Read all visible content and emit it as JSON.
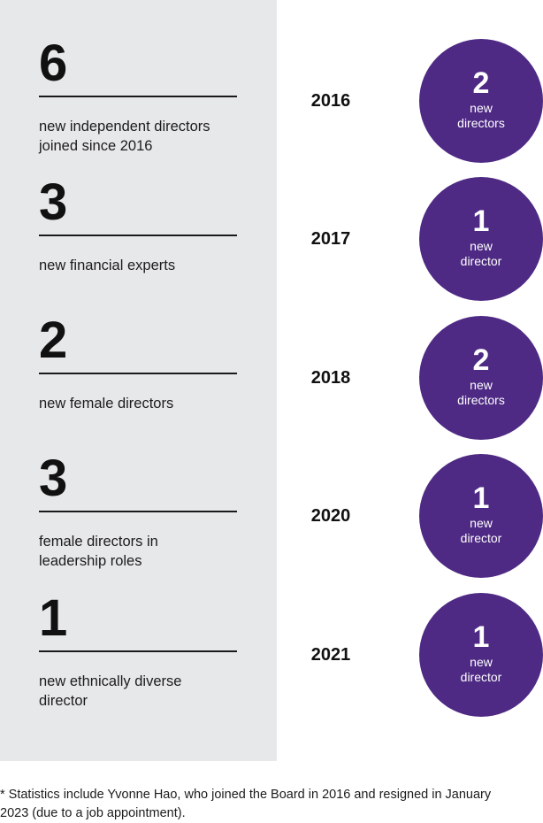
{
  "stats": [
    {
      "number": "6",
      "description": "new independent directors\njoined since 2016"
    },
    {
      "number": "3",
      "description": "new financial experts"
    },
    {
      "number": "2",
      "description": "new female directors"
    },
    {
      "number": "3",
      "description": "female directors in\nleadership roles"
    },
    {
      "number": "1",
      "description": "new ethnically diverse\ndirector"
    }
  ],
  "timeline": [
    {
      "year": "2016",
      "count": "2",
      "label": "new\ndirectors"
    },
    {
      "year": "2017",
      "count": "1",
      "label": "new\ndirector"
    },
    {
      "year": "2018",
      "count": "2",
      "label": "new\ndirectors"
    },
    {
      "year": "2020",
      "count": "1",
      "label": "new\ndirector"
    },
    {
      "year": "2021",
      "count": "1",
      "label": "new\ndirector"
    }
  ],
  "footnote": "* Statistics include Yvonne Hao, who joined the Board in 2016 and resigned in January\n2023 (due to a job appointment).",
  "colors": {
    "panel": "#e7e8ea",
    "circle": "#4e2a84",
    "text": "#111111"
  }
}
